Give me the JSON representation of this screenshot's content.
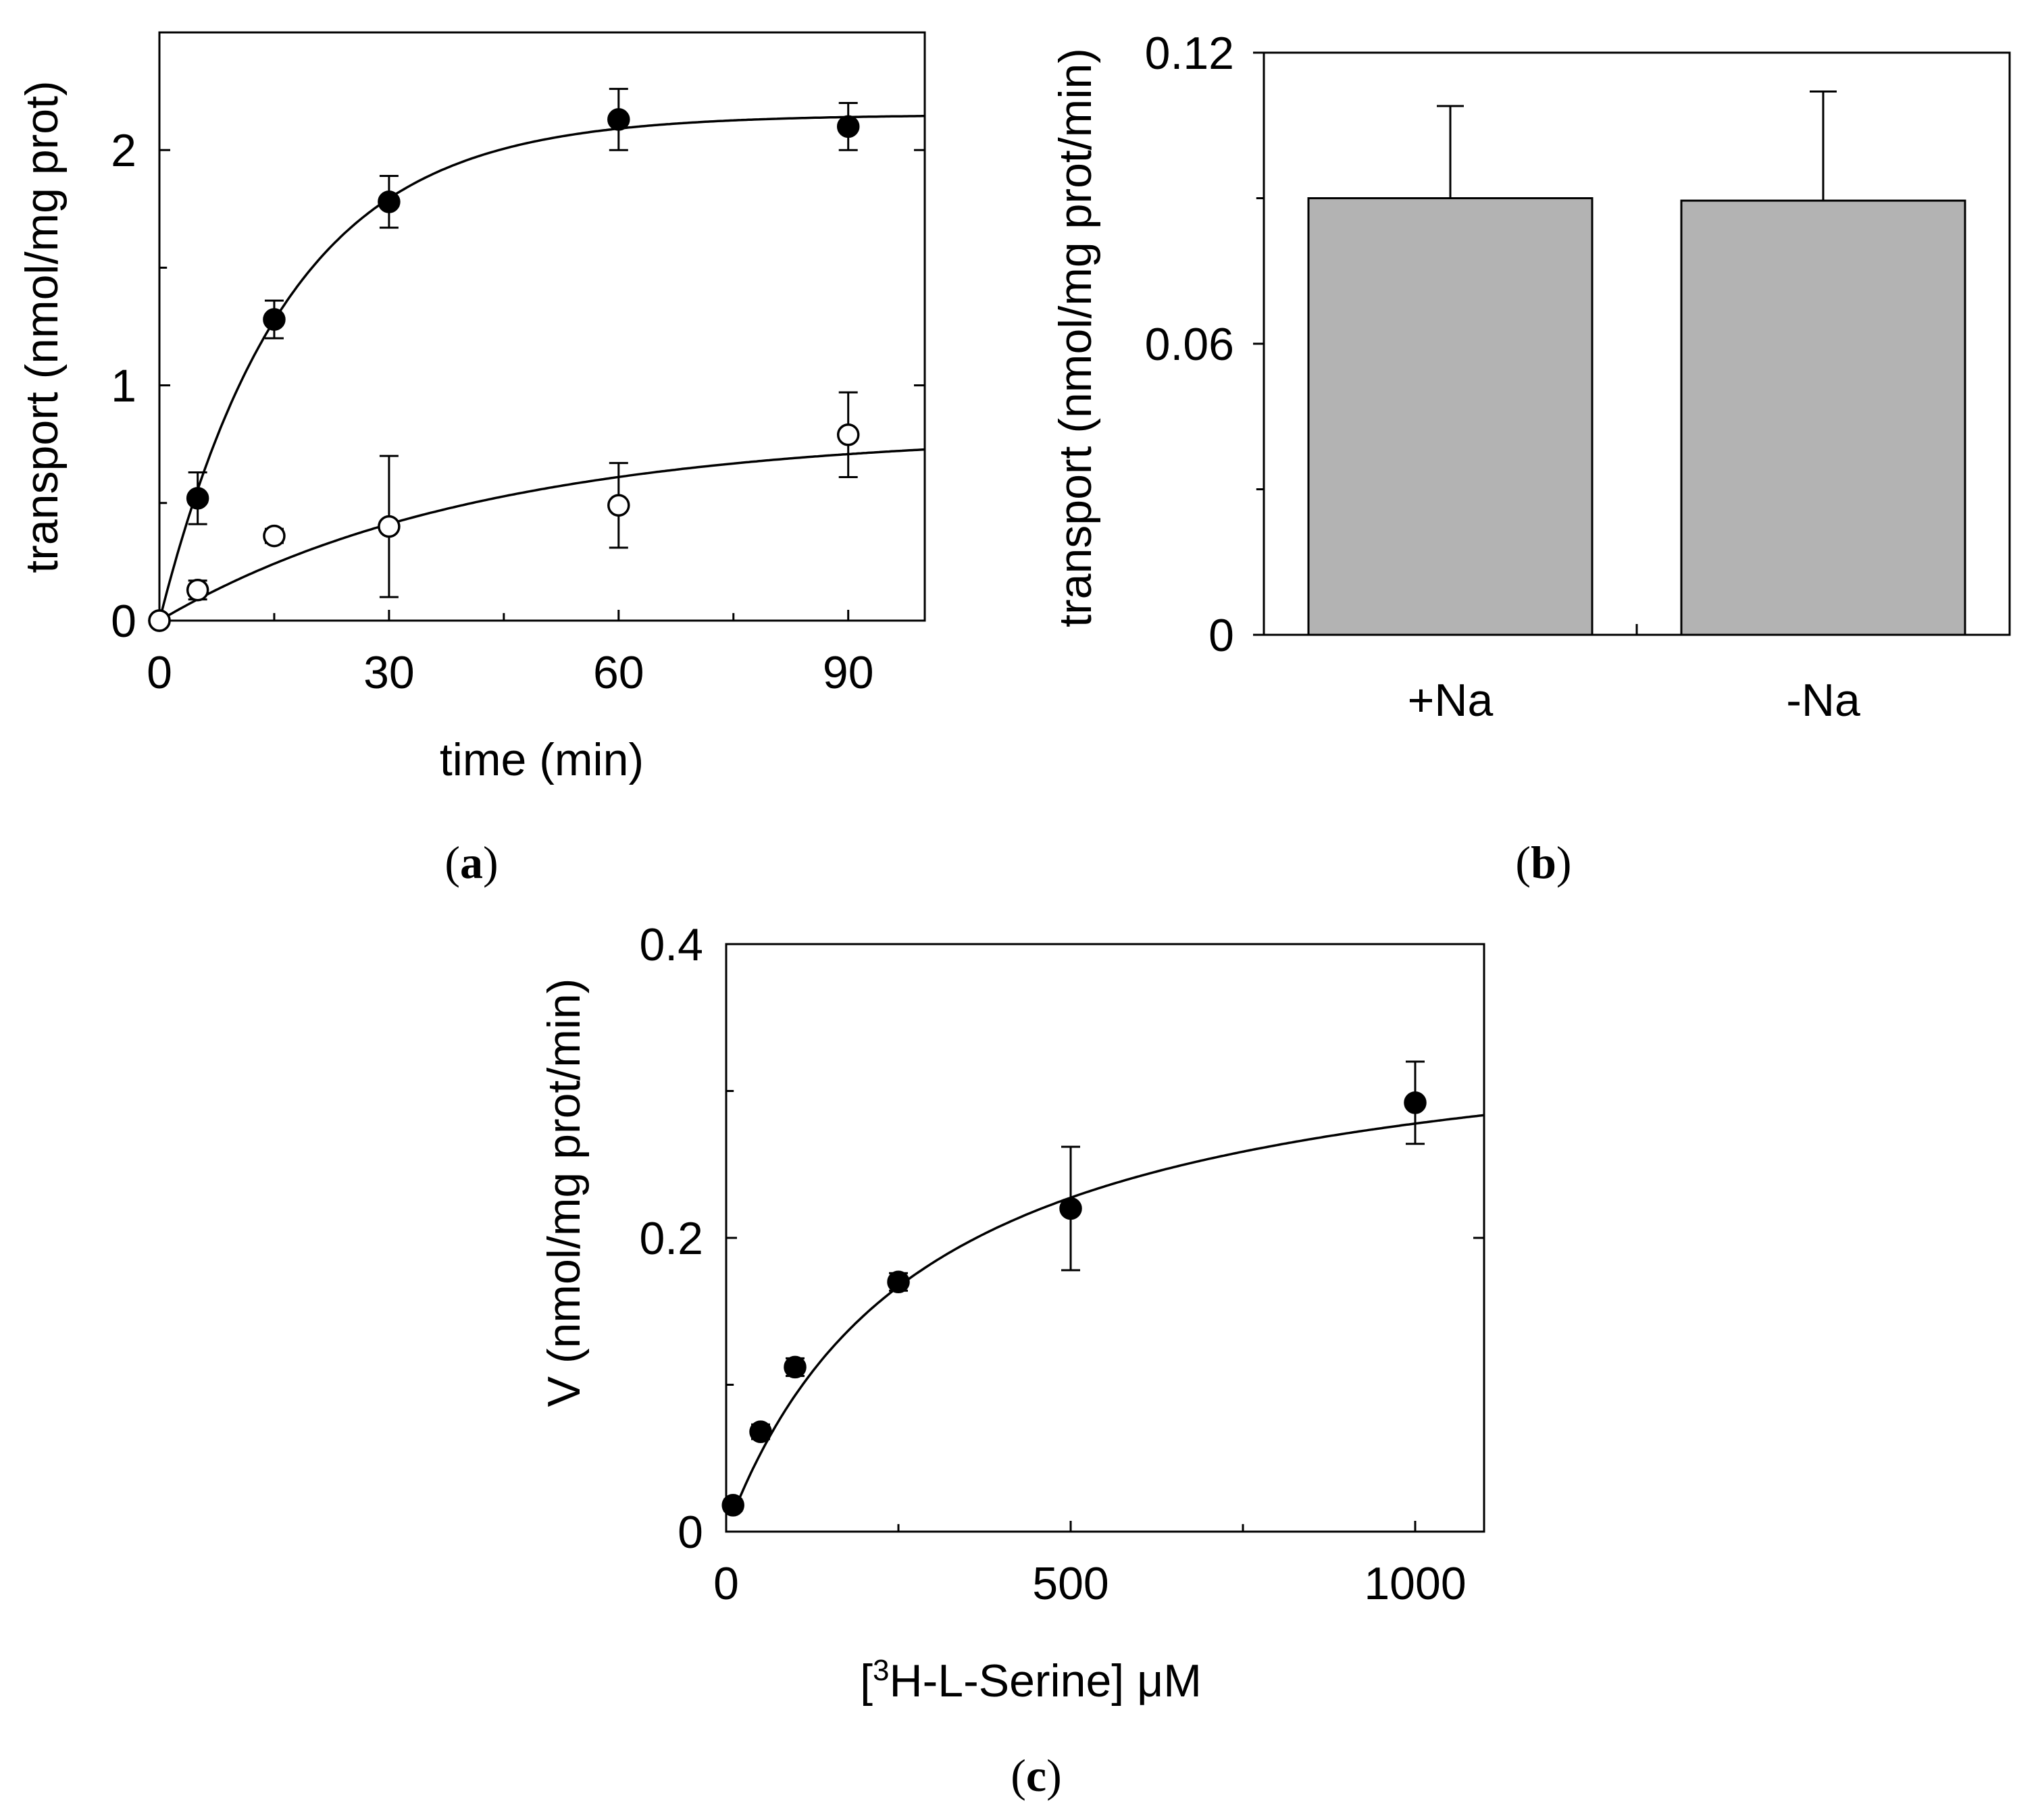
{
  "chart_data": [
    {
      "panel": "a",
      "caption": "a",
      "type": "scatter",
      "xlabel": "time (min)",
      "ylabel": "transport (nmol/mg prot)",
      "xlim": [
        0,
        100
      ],
      "ylim": [
        0,
        2.5
      ],
      "x_ticks": [
        0,
        30,
        60,
        90
      ],
      "y_ticks": [
        0,
        1,
        2
      ],
      "series": [
        {
          "name": "filled",
          "marker": "filled-circle",
          "x": [
            0,
            5,
            15,
            30,
            60,
            90
          ],
          "y": [
            0,
            0.52,
            1.28,
            1.78,
            2.13,
            2.1
          ],
          "err": [
            0,
            0.11,
            0.08,
            0.11,
            0.13,
            0.1
          ],
          "fit": {
            "model": "first-order",
            "ymax": 2.15,
            "k": 0.06
          }
        },
        {
          "name": "open",
          "marker": "open-circle",
          "x": [
            0,
            5,
            15,
            30,
            60,
            90
          ],
          "y": [
            0,
            0.13,
            0.36,
            0.4,
            0.49,
            0.79
          ],
          "err": [
            0,
            0.04,
            0.03,
            0.3,
            0.18,
            0.18
          ],
          "fit": {
            "model": "first-order",
            "ymax": 0.8,
            "k": 0.024
          }
        }
      ]
    },
    {
      "panel": "b",
      "caption": "b",
      "type": "bar",
      "ylabel": "transport (nmol/mg prot/min)",
      "ylim": [
        0,
        0.12
      ],
      "y_ticks": [
        0,
        0.06,
        0.12
      ],
      "y_tick_labels": [
        "0",
        "0.06",
        "0.12"
      ],
      "categories": [
        "+Na",
        "-Na"
      ],
      "values": [
        0.09,
        0.0895
      ],
      "err": [
        0.019,
        0.0225
      ],
      "bar_color": "#b3b3b3"
    },
    {
      "panel": "c",
      "caption": "c",
      "type": "scatter",
      "xlabel": "[³H-L-Serine] μM",
      "xlabel_prefix": "[",
      "xlabel_sup": "3",
      "xlabel_suffix": "H-L-Serine] μM",
      "ylabel": "V (nmol/mg prot/min)",
      "xlim": [
        0,
        1100
      ],
      "ylim": [
        0,
        0.4
      ],
      "x_ticks": [
        0,
        500,
        1000
      ],
      "y_ticks": [
        0,
        0.2,
        0.4
      ],
      "series": [
        {
          "name": "filled",
          "marker": "filled-circle",
          "x": [
            10,
            50,
            100,
            250,
            500,
            1000
          ],
          "y": [
            0.018,
            0.068,
            0.112,
            0.17,
            0.22,
            0.292
          ],
          "err": [
            0.004,
            0.005,
            0.006,
            0.006,
            0.042,
            0.028
          ],
          "fit": {
            "model": "michaelis-menten",
            "vmax": 0.357,
            "km": 285
          }
        }
      ]
    }
  ]
}
